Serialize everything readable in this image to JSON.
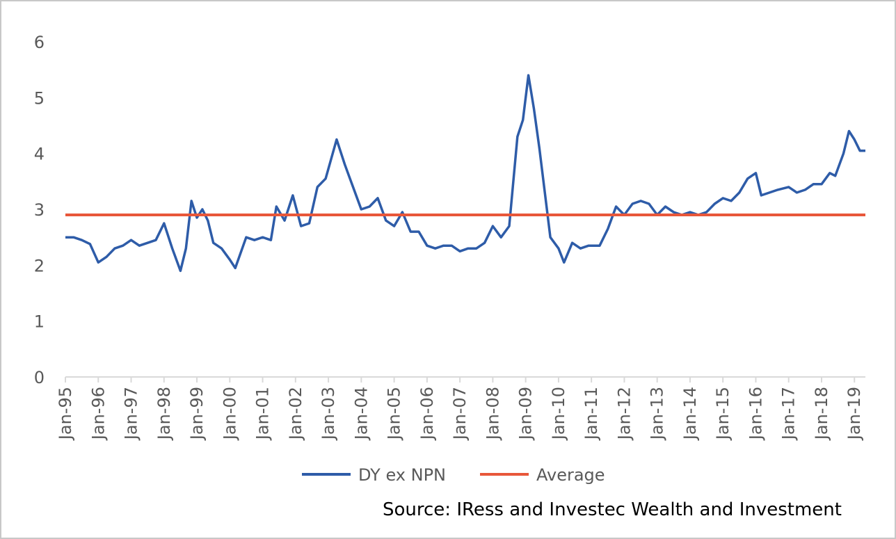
{
  "source": "Source: IRess and Investec Wealth and Investment",
  "chart_data": {
    "type": "line",
    "title": "",
    "xlabel": "",
    "ylabel": "",
    "ylim": [
      0,
      6
    ],
    "yticks": [
      "0",
      "1",
      "2",
      "3",
      "4",
      "5",
      "6"
    ],
    "x_tick_labels": [
      "Jan-95",
      "Jan-96",
      "Jan-97",
      "Jan-98",
      "Jan-99",
      "Jan-00",
      "Jan-01",
      "Jan-02",
      "Jan-03",
      "Jan-04",
      "Jan-05",
      "Jan-06",
      "Jan-07",
      "Jan-08",
      "Jan-09",
      "Jan-10",
      "Jan-11",
      "Jan-12",
      "Jan-13",
      "Jan-14",
      "Jan-15",
      "Jan-16",
      "Jan-17",
      "Jan-18",
      "Jan-19"
    ],
    "grid": false,
    "legend_position": "bottom",
    "series": [
      {
        "name": "DY ex NPN",
        "color": "#2e5ca8",
        "points": [
          [
            "1995-01",
            2.5
          ],
          [
            "1995-04",
            2.5
          ],
          [
            "1995-07",
            2.45
          ],
          [
            "1995-10",
            2.38
          ],
          [
            "1996-01",
            2.05
          ],
          [
            "1996-04",
            2.15
          ],
          [
            "1996-07",
            2.3
          ],
          [
            "1996-10",
            2.35
          ],
          [
            "1997-01",
            2.45
          ],
          [
            "1997-04",
            2.35
          ],
          [
            "1997-07",
            2.4
          ],
          [
            "1997-10",
            2.45
          ],
          [
            "1998-01",
            2.75
          ],
          [
            "1998-04",
            2.3
          ],
          [
            "1998-07",
            1.9
          ],
          [
            "1998-09",
            2.3
          ],
          [
            "1998-11",
            3.15
          ],
          [
            "1999-01",
            2.85
          ],
          [
            "1999-03",
            3.0
          ],
          [
            "1999-05",
            2.8
          ],
          [
            "1999-07",
            2.4
          ],
          [
            "1999-10",
            2.3
          ],
          [
            "2000-01",
            2.1
          ],
          [
            "2000-03",
            1.95
          ],
          [
            "2000-07",
            2.5
          ],
          [
            "2000-10",
            2.45
          ],
          [
            "2001-01",
            2.5
          ],
          [
            "2001-04",
            2.45
          ],
          [
            "2001-06",
            3.05
          ],
          [
            "2001-09",
            2.8
          ],
          [
            "2001-12",
            3.25
          ],
          [
            "2002-03",
            2.7
          ],
          [
            "2002-06",
            2.75
          ],
          [
            "2002-09",
            3.4
          ],
          [
            "2002-12",
            3.55
          ],
          [
            "2003-02",
            3.9
          ],
          [
            "2003-04",
            4.25
          ],
          [
            "2003-07",
            3.8
          ],
          [
            "2003-10",
            3.4
          ],
          [
            "2004-01",
            3.0
          ],
          [
            "2004-04",
            3.05
          ],
          [
            "2004-07",
            3.2
          ],
          [
            "2004-10",
            2.8
          ],
          [
            "2005-01",
            2.7
          ],
          [
            "2005-04",
            2.95
          ],
          [
            "2005-07",
            2.6
          ],
          [
            "2005-10",
            2.6
          ],
          [
            "2006-01",
            2.35
          ],
          [
            "2006-04",
            2.3
          ],
          [
            "2006-07",
            2.35
          ],
          [
            "2006-10",
            2.35
          ],
          [
            "2007-01",
            2.25
          ],
          [
            "2007-04",
            2.3
          ],
          [
            "2007-07",
            2.3
          ],
          [
            "2007-10",
            2.4
          ],
          [
            "2008-01",
            2.7
          ],
          [
            "2008-04",
            2.5
          ],
          [
            "2008-07",
            2.7
          ],
          [
            "2008-10",
            4.3
          ],
          [
            "2008-12",
            4.6
          ],
          [
            "2009-02",
            5.4
          ],
          [
            "2009-04",
            4.8
          ],
          [
            "2009-06",
            4.1
          ],
          [
            "2009-08",
            3.3
          ],
          [
            "2009-10",
            2.5
          ],
          [
            "2010-01",
            2.3
          ],
          [
            "2010-03",
            2.05
          ],
          [
            "2010-06",
            2.4
          ],
          [
            "2010-09",
            2.3
          ],
          [
            "2010-12",
            2.35
          ],
          [
            "2011-04",
            2.35
          ],
          [
            "2011-07",
            2.65
          ],
          [
            "2011-10",
            3.05
          ],
          [
            "2012-01",
            2.9
          ],
          [
            "2012-04",
            3.1
          ],
          [
            "2012-07",
            3.15
          ],
          [
            "2012-10",
            3.1
          ],
          [
            "2013-01",
            2.9
          ],
          [
            "2013-04",
            3.05
          ],
          [
            "2013-07",
            2.95
          ],
          [
            "2013-10",
            2.9
          ],
          [
            "2014-01",
            2.95
          ],
          [
            "2014-04",
            2.9
          ],
          [
            "2014-07",
            2.95
          ],
          [
            "2014-10",
            3.1
          ],
          [
            "2015-01",
            3.2
          ],
          [
            "2015-04",
            3.15
          ],
          [
            "2015-07",
            3.3
          ],
          [
            "2015-10",
            3.55
          ],
          [
            "2016-01",
            3.65
          ],
          [
            "2016-03",
            3.25
          ],
          [
            "2016-06",
            3.3
          ],
          [
            "2016-09",
            3.35
          ],
          [
            "2017-01",
            3.4
          ],
          [
            "2017-04",
            3.3
          ],
          [
            "2017-07",
            3.35
          ],
          [
            "2017-10",
            3.45
          ],
          [
            "2018-01",
            3.45
          ],
          [
            "2018-04",
            3.65
          ],
          [
            "2018-06",
            3.6
          ],
          [
            "2018-09",
            4.0
          ],
          [
            "2018-11",
            4.4
          ],
          [
            "2019-01",
            4.25
          ],
          [
            "2019-03",
            4.05
          ],
          [
            "2019-05",
            4.05
          ]
        ]
      },
      {
        "name": "Average",
        "color": "#e8573a",
        "points": [
          [
            "1995-01",
            2.9
          ],
          [
            "2019-05",
            2.9
          ]
        ]
      }
    ]
  }
}
